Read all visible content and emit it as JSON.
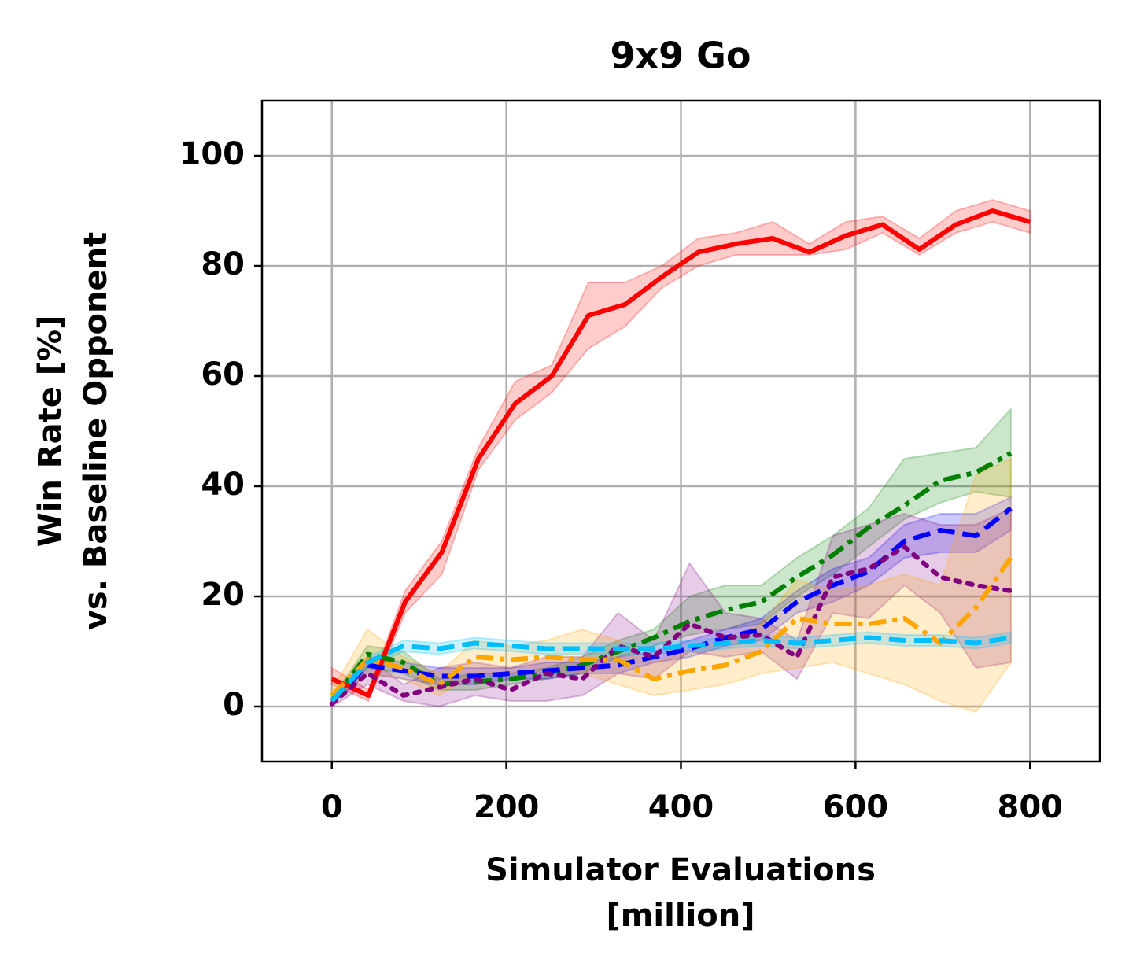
{
  "chart_data": {
    "type": "line",
    "title": "9x9 Go",
    "xlabel": [
      "Simulator Evaluations",
      "[million]"
    ],
    "ylabel": [
      "Win Rate [%]",
      "vs. Baseline Opponent"
    ],
    "xlim": [
      -80,
      880
    ],
    "ylim": [
      -10,
      110
    ],
    "xticks": [
      0,
      200,
      400,
      600,
      800
    ],
    "yticks": [
      0,
      20,
      40,
      60,
      80,
      100
    ],
    "grid": true,
    "series": [
      {
        "color": "#ff0000",
        "linestyle": "solid",
        "x": [
          0,
          42,
          84,
          126,
          168,
          210,
          252,
          294,
          336,
          378,
          420,
          463,
          505,
          547,
          589,
          631,
          673,
          715,
          757,
          800
        ],
        "values": [
          5,
          2,
          19,
          28,
          45,
          55,
          60,
          71,
          73,
          78,
          82.5,
          84,
          85,
          82.5,
          85.5,
          87.5,
          83,
          87.5,
          90,
          88
        ],
        "lower": [
          4,
          1,
          17,
          24,
          43,
          52,
          57,
          65,
          69,
          76,
          80,
          82,
          82,
          82,
          83,
          86,
          82,
          86,
          88,
          86
        ],
        "upper": [
          7,
          3,
          21,
          30,
          47,
          59,
          62,
          77,
          77,
          80,
          85,
          86,
          88,
          84,
          88,
          89,
          85,
          90,
          92,
          90
        ]
      },
      {
        "color": "#008000",
        "linestyle": "dashdot",
        "x": [
          0,
          41,
          82,
          123,
          164,
          205,
          246,
          287,
          328,
          369,
          410,
          451,
          492,
          533,
          574,
          615,
          656,
          697,
          738,
          778
        ],
        "values": [
          1,
          9.5,
          8,
          4,
          4.5,
          5,
          6,
          7.5,
          10,
          12.5,
          15.5,
          17.5,
          19,
          23.5,
          27.5,
          32.5,
          36.5,
          41,
          42.5,
          46
        ],
        "lower": [
          0.5,
          7,
          6,
          3,
          3,
          4,
          5,
          6,
          9,
          11,
          13,
          14,
          15,
          20,
          24,
          29,
          34,
          37,
          39,
          38
        ],
        "upper": [
          1.5,
          11,
          10,
          5,
          6,
          6,
          7,
          9,
          12,
          14,
          20,
          22,
          22,
          27,
          31,
          36,
          45,
          46,
          47,
          54
        ]
      },
      {
        "color": "#0000ff",
        "linestyle": "dashed",
        "x": [
          0,
          41,
          82,
          123,
          164,
          205,
          246,
          287,
          328,
          369,
          410,
          451,
          492,
          533,
          574,
          615,
          656,
          697,
          738,
          778
        ],
        "values": [
          1,
          7.5,
          6.5,
          5.5,
          5.5,
          6,
          6.5,
          7,
          7.5,
          9,
          10.5,
          12.5,
          14,
          19,
          22,
          24.5,
          30,
          32,
          31,
          36
        ],
        "lower": [
          0.5,
          6,
          5,
          4,
          4,
          5,
          5,
          6,
          6,
          8,
          9,
          11,
          12,
          17,
          19,
          22,
          27,
          28,
          28,
          32
        ],
        "upper": [
          1.5,
          9,
          8,
          7,
          7,
          7,
          8,
          8,
          9,
          10,
          12,
          14,
          16,
          21,
          25,
          27,
          33,
          35,
          35,
          38
        ]
      },
      {
        "color": "#800080",
        "linestyle": "dotted",
        "x": [
          0,
          41,
          82,
          123,
          164,
          205,
          246,
          287,
          328,
          369,
          410,
          451,
          492,
          533,
          574,
          615,
          656,
          697,
          738,
          778
        ],
        "values": [
          0.5,
          6,
          2,
          3.5,
          5,
          3,
          6,
          5,
          11,
          9,
          15,
          12.5,
          13,
          9,
          23.5,
          25,
          29,
          23.5,
          22,
          21
        ],
        "lower": [
          0,
          4,
          1,
          0,
          2,
          1,
          1,
          2,
          6,
          5,
          10,
          9,
          10,
          5,
          17,
          16,
          22,
          17,
          7,
          8
        ],
        "upper": [
          1,
          9,
          4,
          7,
          8,
          7,
          9,
          9,
          17,
          12,
          26,
          17,
          16,
          12,
          31,
          33,
          35,
          33,
          33,
          36
        ]
      },
      {
        "color": "#ffa500",
        "linestyle": "dashdot",
        "x": [
          0,
          41,
          82,
          123,
          164,
          205,
          246,
          287,
          328,
          369,
          410,
          451,
          492,
          533,
          574,
          615,
          656,
          697,
          738,
          778
        ],
        "values": [
          2,
          8.5,
          7,
          4,
          9,
          8.5,
          9,
          8.5,
          8.5,
          5,
          6.5,
          7.5,
          10,
          16,
          15,
          15,
          16,
          11.5,
          18,
          27
        ],
        "lower": [
          1,
          6,
          5,
          2,
          6,
          6,
          6,
          6,
          4,
          2,
          3,
          4,
          6,
          7,
          8,
          6,
          4,
          1,
          -1,
          8
        ],
        "upper": [
          3,
          14,
          9,
          6,
          12,
          11,
          12,
          14,
          12,
          8,
          10,
          12,
          15,
          23,
          21,
          22,
          24,
          22,
          42,
          45
        ]
      },
      {
        "color": "#00bfff",
        "linestyle": "dashed",
        "x": [
          0,
          41,
          82,
          123,
          164,
          205,
          246,
          287,
          328,
          369,
          410,
          451,
          492,
          533,
          574,
          615,
          656,
          697,
          738,
          778
        ],
        "values": [
          1,
          8,
          11,
          10.5,
          11.5,
          11,
          10.5,
          10.5,
          10.5,
          10.5,
          11,
          11.5,
          12,
          11.5,
          12,
          12.5,
          12,
          12,
          11.5,
          12.5
        ],
        "lower": [
          0.5,
          7,
          10,
          9.5,
          10.5,
          10,
          9.5,
          9.5,
          9.5,
          9.5,
          10,
          10.5,
          11,
          10.5,
          11,
          11.5,
          11,
          11,
          10.5,
          11.5
        ],
        "upper": [
          1.5,
          9,
          12,
          11.5,
          12.5,
          12,
          11.5,
          11.5,
          11.5,
          11.5,
          12,
          12.5,
          13,
          12.5,
          13,
          13.5,
          13,
          13,
          12.5,
          13.5
        ]
      }
    ]
  }
}
